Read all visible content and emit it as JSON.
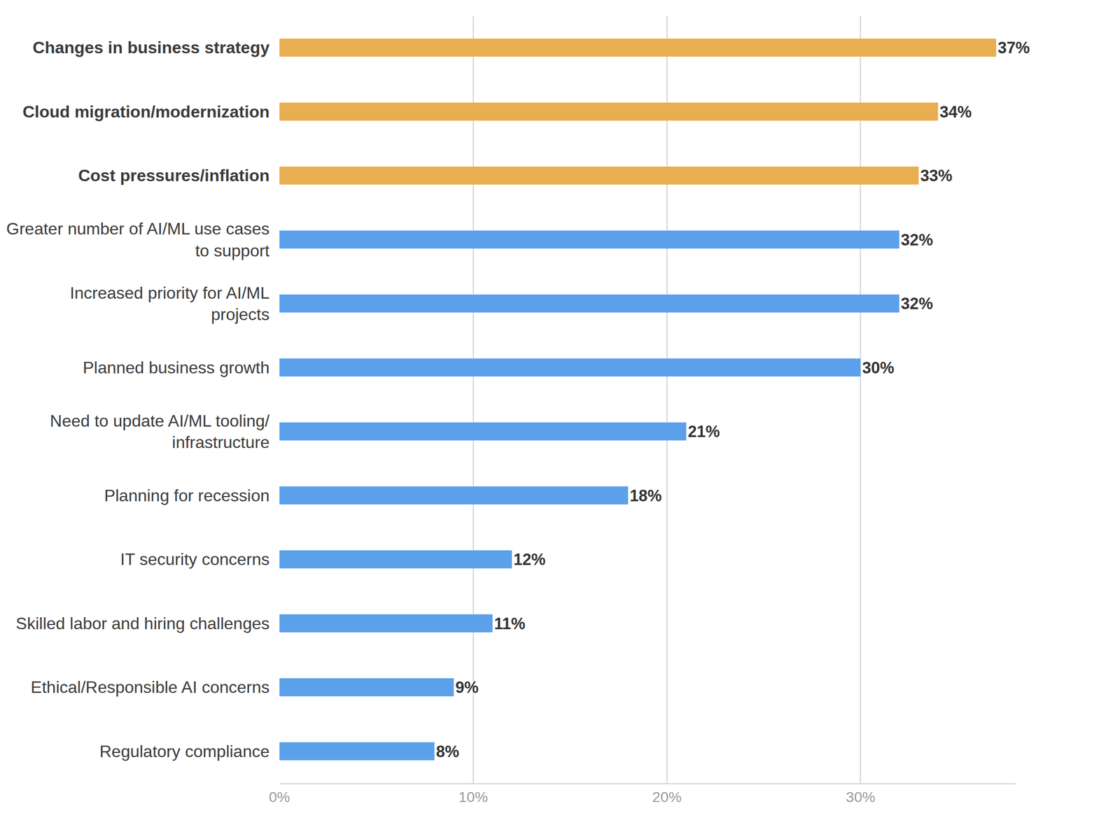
{
  "chart_data": {
    "type": "bar",
    "orientation": "horizontal",
    "categories": [
      "Changes in business strategy",
      "Cloud migration/modernization",
      "Cost pressures/inflation",
      "Greater number of AI/ML use cases to support",
      "Increased priority for AI/ML projects",
      "Planned business growth",
      "Need to update AI/ML tooling/ infrastructure",
      "Planning for recession",
      "IT security concerns",
      "Skilled labor and hiring challenges",
      "Ethical/Responsible AI concerns",
      "Regulatory compliance"
    ],
    "values": [
      37,
      34,
      33,
      32,
      32,
      30,
      21,
      18,
      12,
      11,
      9,
      8
    ],
    "value_labels": [
      "37%",
      "34%",
      "33%",
      "32%",
      "32%",
      "30%",
      "21%",
      "18%",
      "12%",
      "11%",
      "9%",
      "8%"
    ],
    "colors": [
      "#e8ae4f",
      "#e8ae4f",
      "#e8ae4f",
      "#5ba0ea",
      "#5ba0ea",
      "#5ba0ea",
      "#5ba0ea",
      "#5ba0ea",
      "#5ba0ea",
      "#5ba0ea",
      "#5ba0ea",
      "#5ba0ea"
    ],
    "xlim": [
      0,
      38
    ],
    "xticks": [
      {
        "value": 0,
        "label": "0%"
      },
      {
        "value": 10,
        "label": "10%"
      },
      {
        "value": 20,
        "label": "20%"
      },
      {
        "value": 30,
        "label": "30%"
      }
    ],
    "grid": true,
    "data_labels": true
  }
}
